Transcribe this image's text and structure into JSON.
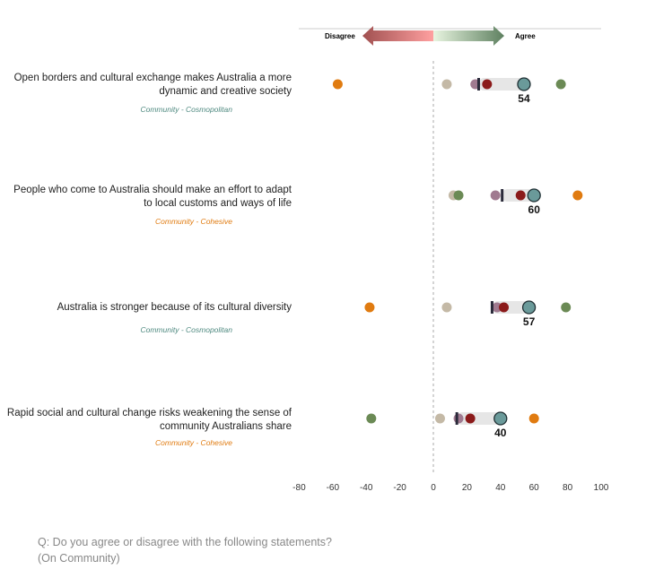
{
  "legend": {
    "disagree": "Disagree",
    "agree": "Agree"
  },
  "statements": [
    {
      "text": "Open borders and cultural exchange makes Australia a more dynamic and creative society",
      "category": "Community - Cosmopolitan",
      "category_color": "#4f8a80"
    },
    {
      "text": "People who come to Australia should make an effort to adapt to local customs and ways of life",
      "category": "Community - Cohesive",
      "category_color": "#e07b10"
    },
    {
      "text": "Australia is stronger because of its cultural diversity",
      "category": "Community - Cosmopolitan",
      "category_color": "#4f8a80"
    },
    {
      "text": "Rapid social and cultural change risks weakening the sense of community Australians share",
      "category": "Community - Cohesive",
      "category_color": "#e07b10"
    }
  ],
  "question": {
    "line1": "Q: Do you agree or disagree with the following statements?",
    "line2": "(On Community)"
  },
  "chart_data": {
    "type": "scatter",
    "xlim": [
      -80,
      100
    ],
    "xticks": [
      -80,
      -60,
      -40,
      -20,
      0,
      20,
      40,
      60,
      80,
      100
    ],
    "series_colors": {
      "orange": "#e07b10",
      "beige": "#c4b9a6",
      "purple": "#a07a90",
      "red": "#8b1a1a",
      "green": "#6b8a55",
      "overall": "#6a9a9a"
    },
    "rows": [
      {
        "orange": -57,
        "beige": 8,
        "purple": 25,
        "marker": 27,
        "red": 32,
        "green": 76,
        "overall": 54,
        "label": "54"
      },
      {
        "beige": 12,
        "green": 15,
        "purple": 37,
        "marker": 41,
        "red": 52,
        "orange": 86,
        "overall": 60,
        "label": "60"
      },
      {
        "orange": -38,
        "beige": 8,
        "marker": 35,
        "purple": 38,
        "red": 42,
        "green": 79,
        "overall": 57,
        "label": "57"
      },
      {
        "green": -37,
        "beige": 4,
        "marker": 14,
        "purple": 15,
        "red": 22,
        "orange": 60,
        "overall": 40,
        "label": "40"
      }
    ]
  }
}
